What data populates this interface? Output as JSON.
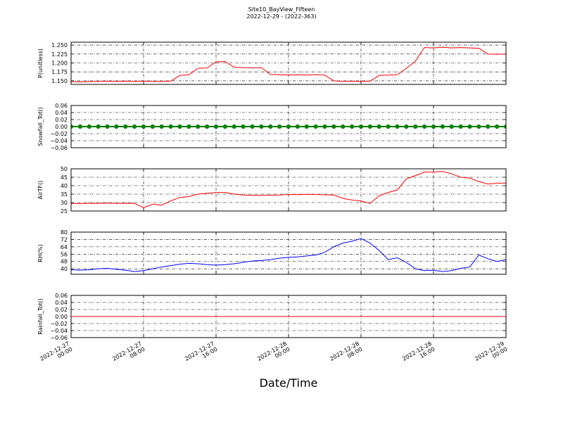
{
  "title": "Site10_BayView_Fifteen",
  "subtitle": "2022-12-29 - (2022-363)",
  "xlabel": "Date/Time",
  "chart_data": [
    {
      "type": "line",
      "ylabel": "P(unitless)",
      "color": "#ff0000",
      "marker": false,
      "x": [
        "2022-12-27 00:00",
        "2022-12-27 01:00",
        "2022-12-27 02:00",
        "2022-12-27 03:00",
        "2022-12-27 04:00",
        "2022-12-27 05:00",
        "2022-12-27 06:00",
        "2022-12-27 07:00",
        "2022-12-27 08:00",
        "2022-12-27 09:00",
        "2022-12-27 10:00",
        "2022-12-27 11:00",
        "2022-12-27 12:00",
        "2022-12-27 13:00",
        "2022-12-27 14:00",
        "2022-12-27 15:00",
        "2022-12-27 16:00",
        "2022-12-27 17:00",
        "2022-12-27 18:00",
        "2022-12-27 19:00",
        "2022-12-27 20:00",
        "2022-12-27 21:00",
        "2022-12-27 22:00",
        "2022-12-27 23:00",
        "2022-12-28 00:00",
        "2022-12-28 01:00",
        "2022-12-28 02:00",
        "2022-12-28 03:00",
        "2022-12-28 04:00",
        "2022-12-28 05:00",
        "2022-12-28 06:00",
        "2022-12-28 07:00",
        "2022-12-28 08:00",
        "2022-12-28 09:00",
        "2022-12-28 10:00",
        "2022-12-28 11:00",
        "2022-12-28 12:00",
        "2022-12-28 13:00",
        "2022-12-28 14:00",
        "2022-12-28 15:00",
        "2022-12-28 16:00",
        "2022-12-28 17:00",
        "2022-12-28 18:00",
        "2022-12-28 19:00",
        "2022-12-28 20:00",
        "2022-12-28 21:00",
        "2022-12-28 22:00",
        "2022-12-28 23:00",
        "2022-12-29 00:00"
      ],
      "values": [
        1.148,
        1.147,
        1.148,
        1.148,
        1.149,
        1.148,
        1.149,
        1.148,
        1.149,
        1.148,
        1.148,
        1.149,
        1.165,
        1.167,
        1.185,
        1.186,
        1.203,
        1.204,
        1.188,
        1.187,
        1.186,
        1.187,
        1.168,
        1.167,
        1.166,
        1.167,
        1.166,
        1.167,
        1.166,
        1.15,
        1.148,
        1.149,
        1.148,
        1.149,
        1.165,
        1.166,
        1.167,
        1.185,
        1.205,
        1.243,
        1.242,
        1.244,
        1.242,
        1.243,
        1.242,
        1.241,
        1.225,
        1.224,
        1.225
      ],
      "ylim": [
        1.14,
        1.258
      ],
      "yticks": [
        {
          "value": 1.15,
          "label": "1.150"
        },
        {
          "value": 1.175,
          "label": "1.175"
        },
        {
          "value": 1.2,
          "label": "1.200"
        },
        {
          "value": 1.225,
          "label": "1.225"
        },
        {
          "value": 1.25,
          "label": "1.250"
        }
      ],
      "xlim": [
        "2022-12-27 00:00",
        "2022-12-29 00:00"
      ],
      "xticks": [
        "2022-12-27 00:00",
        "2022-12-27 08:00",
        "2022-12-27 16:00",
        "2022-12-28 00:00",
        "2022-12-28 08:00",
        "2022-12-28 16:00",
        "2022-12-29 00:00"
      ],
      "grid": true
    },
    {
      "type": "line",
      "ylabel": "Snowfall_Tot()",
      "color": "#008000",
      "marker": true,
      "x": [
        "2022-12-27 00:00",
        "2022-12-27 01:00",
        "2022-12-27 02:00",
        "2022-12-27 03:00",
        "2022-12-27 04:00",
        "2022-12-27 05:00",
        "2022-12-27 06:00",
        "2022-12-27 07:00",
        "2022-12-27 08:00",
        "2022-12-27 09:00",
        "2022-12-27 10:00",
        "2022-12-27 11:00",
        "2022-12-27 12:00",
        "2022-12-27 13:00",
        "2022-12-27 14:00",
        "2022-12-27 15:00",
        "2022-12-27 16:00",
        "2022-12-27 17:00",
        "2022-12-27 18:00",
        "2022-12-27 19:00",
        "2022-12-27 20:00",
        "2022-12-27 21:00",
        "2022-12-27 22:00",
        "2022-12-27 23:00",
        "2022-12-28 00:00",
        "2022-12-28 01:00",
        "2022-12-28 02:00",
        "2022-12-28 03:00",
        "2022-12-28 04:00",
        "2022-12-28 05:00",
        "2022-12-28 06:00",
        "2022-12-28 07:00",
        "2022-12-28 08:00",
        "2022-12-28 09:00",
        "2022-12-28 10:00",
        "2022-12-28 11:00",
        "2022-12-28 12:00",
        "2022-12-28 13:00",
        "2022-12-28 14:00",
        "2022-12-28 15:00",
        "2022-12-28 16:00",
        "2022-12-28 17:00",
        "2022-12-28 18:00",
        "2022-12-28 19:00",
        "2022-12-28 20:00",
        "2022-12-28 21:00",
        "2022-12-28 22:00",
        "2022-12-28 23:00",
        "2022-12-29 00:00"
      ],
      "values": [
        0,
        0,
        0,
        0,
        0,
        0,
        0,
        0,
        0,
        0,
        0,
        0,
        0,
        0,
        0,
        0,
        0,
        0,
        0,
        0,
        0,
        0,
        0,
        0,
        0,
        0,
        0,
        0,
        0,
        0,
        0,
        0,
        0,
        0,
        0,
        0,
        0,
        0,
        0,
        0,
        0,
        0,
        0,
        0,
        0,
        0,
        0,
        0,
        0
      ],
      "ylim": [
        -0.06,
        0.06
      ],
      "yticks": [
        {
          "value": -0.06,
          "label": "−0.06"
        },
        {
          "value": -0.04,
          "label": "−0.04"
        },
        {
          "value": -0.02,
          "label": "−0.02"
        },
        {
          "value": 0,
          "label": "0.00"
        },
        0.02,
        0.04,
        0.06
      ],
      "xlim": [
        "2022-12-27 00:00",
        "2022-12-29 00:00"
      ],
      "xticks": [
        "2022-12-27 00:00",
        "2022-12-27 08:00",
        "2022-12-27 16:00",
        "2022-12-28 00:00",
        "2022-12-28 08:00",
        "2022-12-28 16:00",
        "2022-12-29 00:00"
      ],
      "grid": true
    },
    {
      "type": "line",
      "ylabel": "AirTF()",
      "color": "#ff0000",
      "marker": false,
      "x": [
        "2022-12-27 00:00",
        "2022-12-27 01:00",
        "2022-12-27 02:00",
        "2022-12-27 03:00",
        "2022-12-27 04:00",
        "2022-12-27 05:00",
        "2022-12-27 06:00",
        "2022-12-27 07:00",
        "2022-12-27 08:00",
        "2022-12-27 09:00",
        "2022-12-27 10:00",
        "2022-12-27 11:00",
        "2022-12-27 12:00",
        "2022-12-27 13:00",
        "2022-12-27 14:00",
        "2022-12-27 15:00",
        "2022-12-27 16:00",
        "2022-12-27 17:00",
        "2022-12-27 18:00",
        "2022-12-27 19:00",
        "2022-12-27 20:00",
        "2022-12-27 21:00",
        "2022-12-27 22:00",
        "2022-12-27 23:00",
        "2022-12-28 00:00",
        "2022-12-28 01:00",
        "2022-12-28 02:00",
        "2022-12-28 03:00",
        "2022-12-28 04:00",
        "2022-12-28 05:00",
        "2022-12-28 06:00",
        "2022-12-28 07:00",
        "2022-12-28 08:00",
        "2022-12-28 09:00",
        "2022-12-28 10:00",
        "2022-12-28 11:00",
        "2022-12-28 12:00",
        "2022-12-28 13:00",
        "2022-12-28 14:00",
        "2022-12-28 15:00",
        "2022-12-28 16:00",
        "2022-12-28 17:00",
        "2022-12-28 18:00",
        "2022-12-28 19:00",
        "2022-12-28 20:00",
        "2022-12-28 21:00",
        "2022-12-28 22:00",
        "2022-12-28 23:00",
        "2022-12-29 00:00"
      ],
      "values": [
        29.5,
        29.4,
        29.6,
        29.5,
        29.7,
        29.5,
        29.6,
        29.5,
        27,
        29,
        28.5,
        31,
        33,
        33.5,
        35,
        35.5,
        36,
        36,
        35,
        34.5,
        34.3,
        34.2,
        34.4,
        34.5,
        34.8,
        34.7,
        34.9,
        34.8,
        34.6,
        34.5,
        32.5,
        31.5,
        31,
        29.5,
        34,
        36,
        37.5,
        44,
        46,
        48,
        48,
        48.5,
        47,
        45,
        44.5,
        42.5,
        41,
        41.5,
        41.5
      ],
      "ylim": [
        25,
        50
      ],
      "yticks": [
        25,
        30,
        35,
        40,
        45,
        50
      ],
      "xlim": [
        "2022-12-27 00:00",
        "2022-12-29 00:00"
      ],
      "xticks": [
        "2022-12-27 00:00",
        "2022-12-27 08:00",
        "2022-12-27 16:00",
        "2022-12-28 00:00",
        "2022-12-28 08:00",
        "2022-12-28 16:00",
        "2022-12-29 00:00"
      ],
      "grid": true
    },
    {
      "type": "line",
      "ylabel": "RH(%)",
      "color": "#0000ff",
      "marker": false,
      "x": [
        "2022-12-27 00:00",
        "2022-12-27 01:00",
        "2022-12-27 02:00",
        "2022-12-27 03:00",
        "2022-12-27 04:00",
        "2022-12-27 05:00",
        "2022-12-27 06:00",
        "2022-12-27 07:00",
        "2022-12-27 08:00",
        "2022-12-27 09:00",
        "2022-12-27 10:00",
        "2022-12-27 11:00",
        "2022-12-27 12:00",
        "2022-12-27 13:00",
        "2022-12-27 14:00",
        "2022-12-27 15:00",
        "2022-12-27 16:00",
        "2022-12-27 17:00",
        "2022-12-27 18:00",
        "2022-12-27 19:00",
        "2022-12-27 20:00",
        "2022-12-27 21:00",
        "2022-12-27 22:00",
        "2022-12-27 23:00",
        "2022-12-28 00:00",
        "2022-12-28 01:00",
        "2022-12-28 02:00",
        "2022-12-28 03:00",
        "2022-12-28 04:00",
        "2022-12-28 05:00",
        "2022-12-28 06:00",
        "2022-12-28 07:00",
        "2022-12-28 08:00",
        "2022-12-28 09:00",
        "2022-12-28 10:00",
        "2022-12-28 11:00",
        "2022-12-28 12:00",
        "2022-12-28 13:00",
        "2022-12-28 14:00",
        "2022-12-28 15:00",
        "2022-12-28 16:00",
        "2022-12-28 17:00",
        "2022-12-28 18:00",
        "2022-12-28 19:00",
        "2022-12-28 20:00",
        "2022-12-28 21:00",
        "2022-12-28 22:00",
        "2022-12-28 23:00",
        "2022-12-29 00:00"
      ],
      "values": [
        39,
        38.5,
        39,
        40,
        40.5,
        39.5,
        38.5,
        37,
        38,
        40,
        42,
        43.5,
        45,
        46,
        45.5,
        44.5,
        44,
        44.5,
        45.5,
        47,
        48.5,
        49,
        50,
        51.5,
        52.5,
        53,
        54,
        55,
        58,
        64,
        68,
        70,
        73,
        68,
        60,
        50,
        52,
        47,
        40,
        38,
        38.5,
        37,
        38,
        40.5,
        42,
        55,
        51,
        48,
        50
      ],
      "ylim": [
        34,
        80
      ],
      "yticks": [
        40,
        48,
        56,
        64,
        72,
        80
      ],
      "xlim": [
        "2022-12-27 00:00",
        "2022-12-29 00:00"
      ],
      "xticks": [
        "2022-12-27 00:00",
        "2022-12-27 08:00",
        "2022-12-27 16:00",
        "2022-12-28 00:00",
        "2022-12-28 08:00",
        "2022-12-28 16:00",
        "2022-12-29 00:00"
      ],
      "grid": true
    },
    {
      "type": "line",
      "ylabel": "Rainfall_Tot()",
      "color": "#ff0000",
      "marker": false,
      "x": [
        "2022-12-27 00:00",
        "2022-12-27 01:00",
        "2022-12-27 02:00",
        "2022-12-27 03:00",
        "2022-12-27 04:00",
        "2022-12-27 05:00",
        "2022-12-27 06:00",
        "2022-12-27 07:00",
        "2022-12-27 08:00",
        "2022-12-27 09:00",
        "2022-12-27 10:00",
        "2022-12-27 11:00",
        "2022-12-27 12:00",
        "2022-12-27 13:00",
        "2022-12-27 14:00",
        "2022-12-27 15:00",
        "2022-12-27 16:00",
        "2022-12-27 17:00",
        "2022-12-27 18:00",
        "2022-12-27 19:00",
        "2022-12-27 20:00",
        "2022-12-27 21:00",
        "2022-12-27 22:00",
        "2022-12-27 23:00",
        "2022-12-28 00:00",
        "2022-12-28 01:00",
        "2022-12-28 02:00",
        "2022-12-28 03:00",
        "2022-12-28 04:00",
        "2022-12-28 05:00",
        "2022-12-28 06:00",
        "2022-12-28 07:00",
        "2022-12-28 08:00",
        "2022-12-28 09:00",
        "2022-12-28 10:00",
        "2022-12-28 11:00",
        "2022-12-28 12:00",
        "2022-12-28 13:00",
        "2022-12-28 14:00",
        "2022-12-28 15:00",
        "2022-12-28 16:00",
        "2022-12-28 17:00",
        "2022-12-28 18:00",
        "2022-12-28 19:00",
        "2022-12-28 20:00",
        "2022-12-28 21:00",
        "2022-12-28 22:00",
        "2022-12-28 23:00",
        "2022-12-29 00:00"
      ],
      "values": [
        0,
        0,
        0,
        0,
        0,
        0,
        0,
        0,
        0,
        0,
        0,
        0,
        0,
        0,
        0,
        0,
        0,
        0,
        0,
        0,
        0,
        0,
        0,
        0,
        0,
        0,
        0,
        0,
        0,
        0,
        0,
        0,
        0,
        0,
        0,
        0,
        0,
        0,
        0,
        0,
        0,
        0,
        0,
        0,
        0,
        0,
        0,
        0,
        0
      ],
      "ylim": [
        -0.06,
        0.06
      ],
      "yticks": [
        {
          "value": -0.06,
          "label": "−0.06"
        },
        {
          "value": -0.04,
          "label": "−0.04"
        },
        {
          "value": -0.02,
          "label": "−0.02"
        },
        {
          "value": 0,
          "label": "0.00"
        },
        0.02,
        0.04,
        0.06
      ],
      "xlim": [
        "2022-12-27 00:00",
        "2022-12-29 00:00"
      ],
      "xticks": [
        "2022-12-27 00:00",
        "2022-12-27 08:00",
        "2022-12-27 16:00",
        "2022-12-28 00:00",
        "2022-12-28 08:00",
        "2022-12-28 16:00",
        "2022-12-29 00:00"
      ],
      "show_xticklabels": true,
      "grid": true
    }
  ]
}
